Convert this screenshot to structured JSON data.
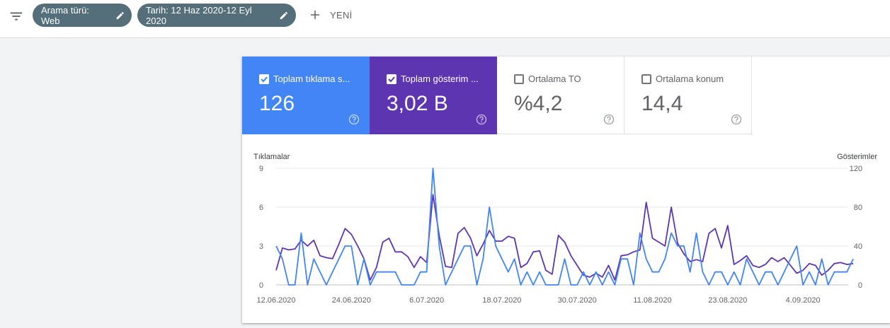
{
  "filters": {
    "chips": [
      {
        "label": "Arama türü: Web"
      },
      {
        "label": "Tarih: 12 Haz 2020-12 Eyl 2020"
      }
    ],
    "new_label": "YENİ"
  },
  "metrics": [
    {
      "label": "Toplam tıklama s...",
      "value": "126",
      "checked": true,
      "color": "#4285f4"
    },
    {
      "label": "Toplam gösterim ...",
      "value": "3,02 B",
      "checked": true,
      "color": "#5e35b1"
    },
    {
      "label": "Ortalama TO",
      "value": "%4,2",
      "checked": false
    },
    {
      "label": "Ortalama konum",
      "value": "14,4",
      "checked": false
    }
  ],
  "chart_data": {
    "type": "line",
    "y_left_label": "Tıklamalar",
    "y_right_label": "Gösterimler",
    "y_left_ticks": [
      "9",
      "6",
      "3",
      "0"
    ],
    "y_right_ticks": [
      "120",
      "80",
      "40",
      "0"
    ],
    "y_left_range": [
      0,
      9
    ],
    "y_right_range": [
      0,
      120
    ],
    "x_tick_labels": [
      "12.06.2020",
      "24.06.2020",
      "6.07.2020",
      "18.07.2020",
      "30.07.2020",
      "11.08.2020",
      "23.08.2020",
      "4.09.2020"
    ],
    "x_start": "2020-06-12",
    "x_end": "2020-09-12",
    "series": [
      {
        "name": "Tıklamalar",
        "axis": "left",
        "color": "#4285f4",
        "values": [
          3,
          2,
          0,
          0,
          4,
          0,
          2,
          1,
          0,
          1,
          2,
          3,
          3,
          0,
          2,
          0,
          1,
          1,
          1,
          1,
          0,
          0,
          0,
          1,
          1,
          9,
          3,
          0,
          1,
          2,
          3,
          3,
          0,
          2,
          6,
          3,
          2,
          1,
          2,
          0,
          1,
          0,
          1,
          0,
          0,
          0,
          2,
          0,
          0,
          1,
          0,
          1,
          0,
          1,
          0,
          2,
          2,
          0,
          4,
          2,
          1,
          1,
          2,
          4,
          3,
          3,
          1,
          4,
          1,
          0,
          1,
          1,
          0,
          1,
          0,
          2,
          1,
          0,
          1,
          1,
          0,
          1,
          2,
          3,
          0,
          1,
          0,
          2,
          0,
          1,
          1,
          1,
          2
        ]
      },
      {
        "name": "Gösterimler",
        "axis": "right",
        "color": "#5e35b1",
        "values": [
          15,
          38,
          36,
          37,
          46,
          40,
          46,
          30,
          28,
          27,
          42,
          58,
          52,
          40,
          27,
          5,
          18,
          44,
          48,
          34,
          34,
          29,
          18,
          29,
          23,
          93,
          51,
          19,
          18,
          53,
          59,
          48,
          30,
          42,
          56,
          45,
          45,
          50,
          48,
          18,
          22,
          34,
          35,
          15,
          11,
          51,
          44,
          30,
          20,
          10,
          8,
          12,
          8,
          20,
          5,
          30,
          31,
          34,
          36,
          85,
          48,
          44,
          40,
          80,
          43,
          32,
          24,
          26,
          24,
          53,
          58,
          38,
          61,
          21,
          25,
          30,
          20,
          18,
          21,
          28,
          24,
          28,
          20,
          12,
          15,
          22,
          20,
          10,
          15,
          22,
          23,
          21,
          22
        ]
      }
    ]
  }
}
